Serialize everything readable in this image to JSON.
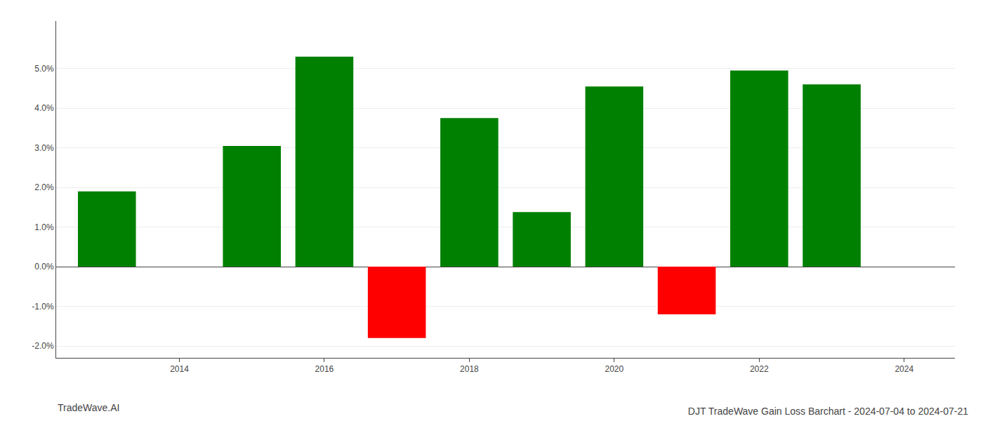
{
  "chart_data": {
    "type": "bar",
    "title": "DJT TradeWave Gain Loss Barchart - 2024-07-04 to 2024-07-21",
    "annotations": [
      "TradeWave.AI"
    ],
    "x": [
      2013,
      2015,
      2016,
      2017,
      2018,
      2019,
      2020,
      2021,
      2022,
      2023
    ],
    "values": [
      0.019,
      0.0305,
      0.053,
      -0.018,
      0.0375,
      0.0138,
      0.0455,
      -0.012,
      0.0495,
      0.046
    ],
    "colors": [
      "#008000",
      "#008000",
      "#008000",
      "#ff0000",
      "#008000",
      "#008000",
      "#008000",
      "#ff0000",
      "#008000",
      "#008000"
    ],
    "xlim": [
      2012.3,
      2024.7
    ],
    "xticks": [
      2014,
      2016,
      2018,
      2020,
      2022,
      2024
    ],
    "ylim": [
      -0.023,
      0.062
    ],
    "yticks": [
      {
        "value": -0.02,
        "label": "-2.0%"
      },
      {
        "value": -0.01,
        "label": "-1.0%"
      },
      {
        "value": 0,
        "label": "0.0%"
      },
      {
        "value": 0.01,
        "label": "1.0%"
      },
      {
        "value": 0.02,
        "label": "2.0%"
      },
      {
        "value": 0.03,
        "label": "3.0%"
      },
      {
        "value": 0.04,
        "label": "4.0%"
      },
      {
        "value": 0.05,
        "label": "5.0%"
      }
    ],
    "grid": true
  }
}
